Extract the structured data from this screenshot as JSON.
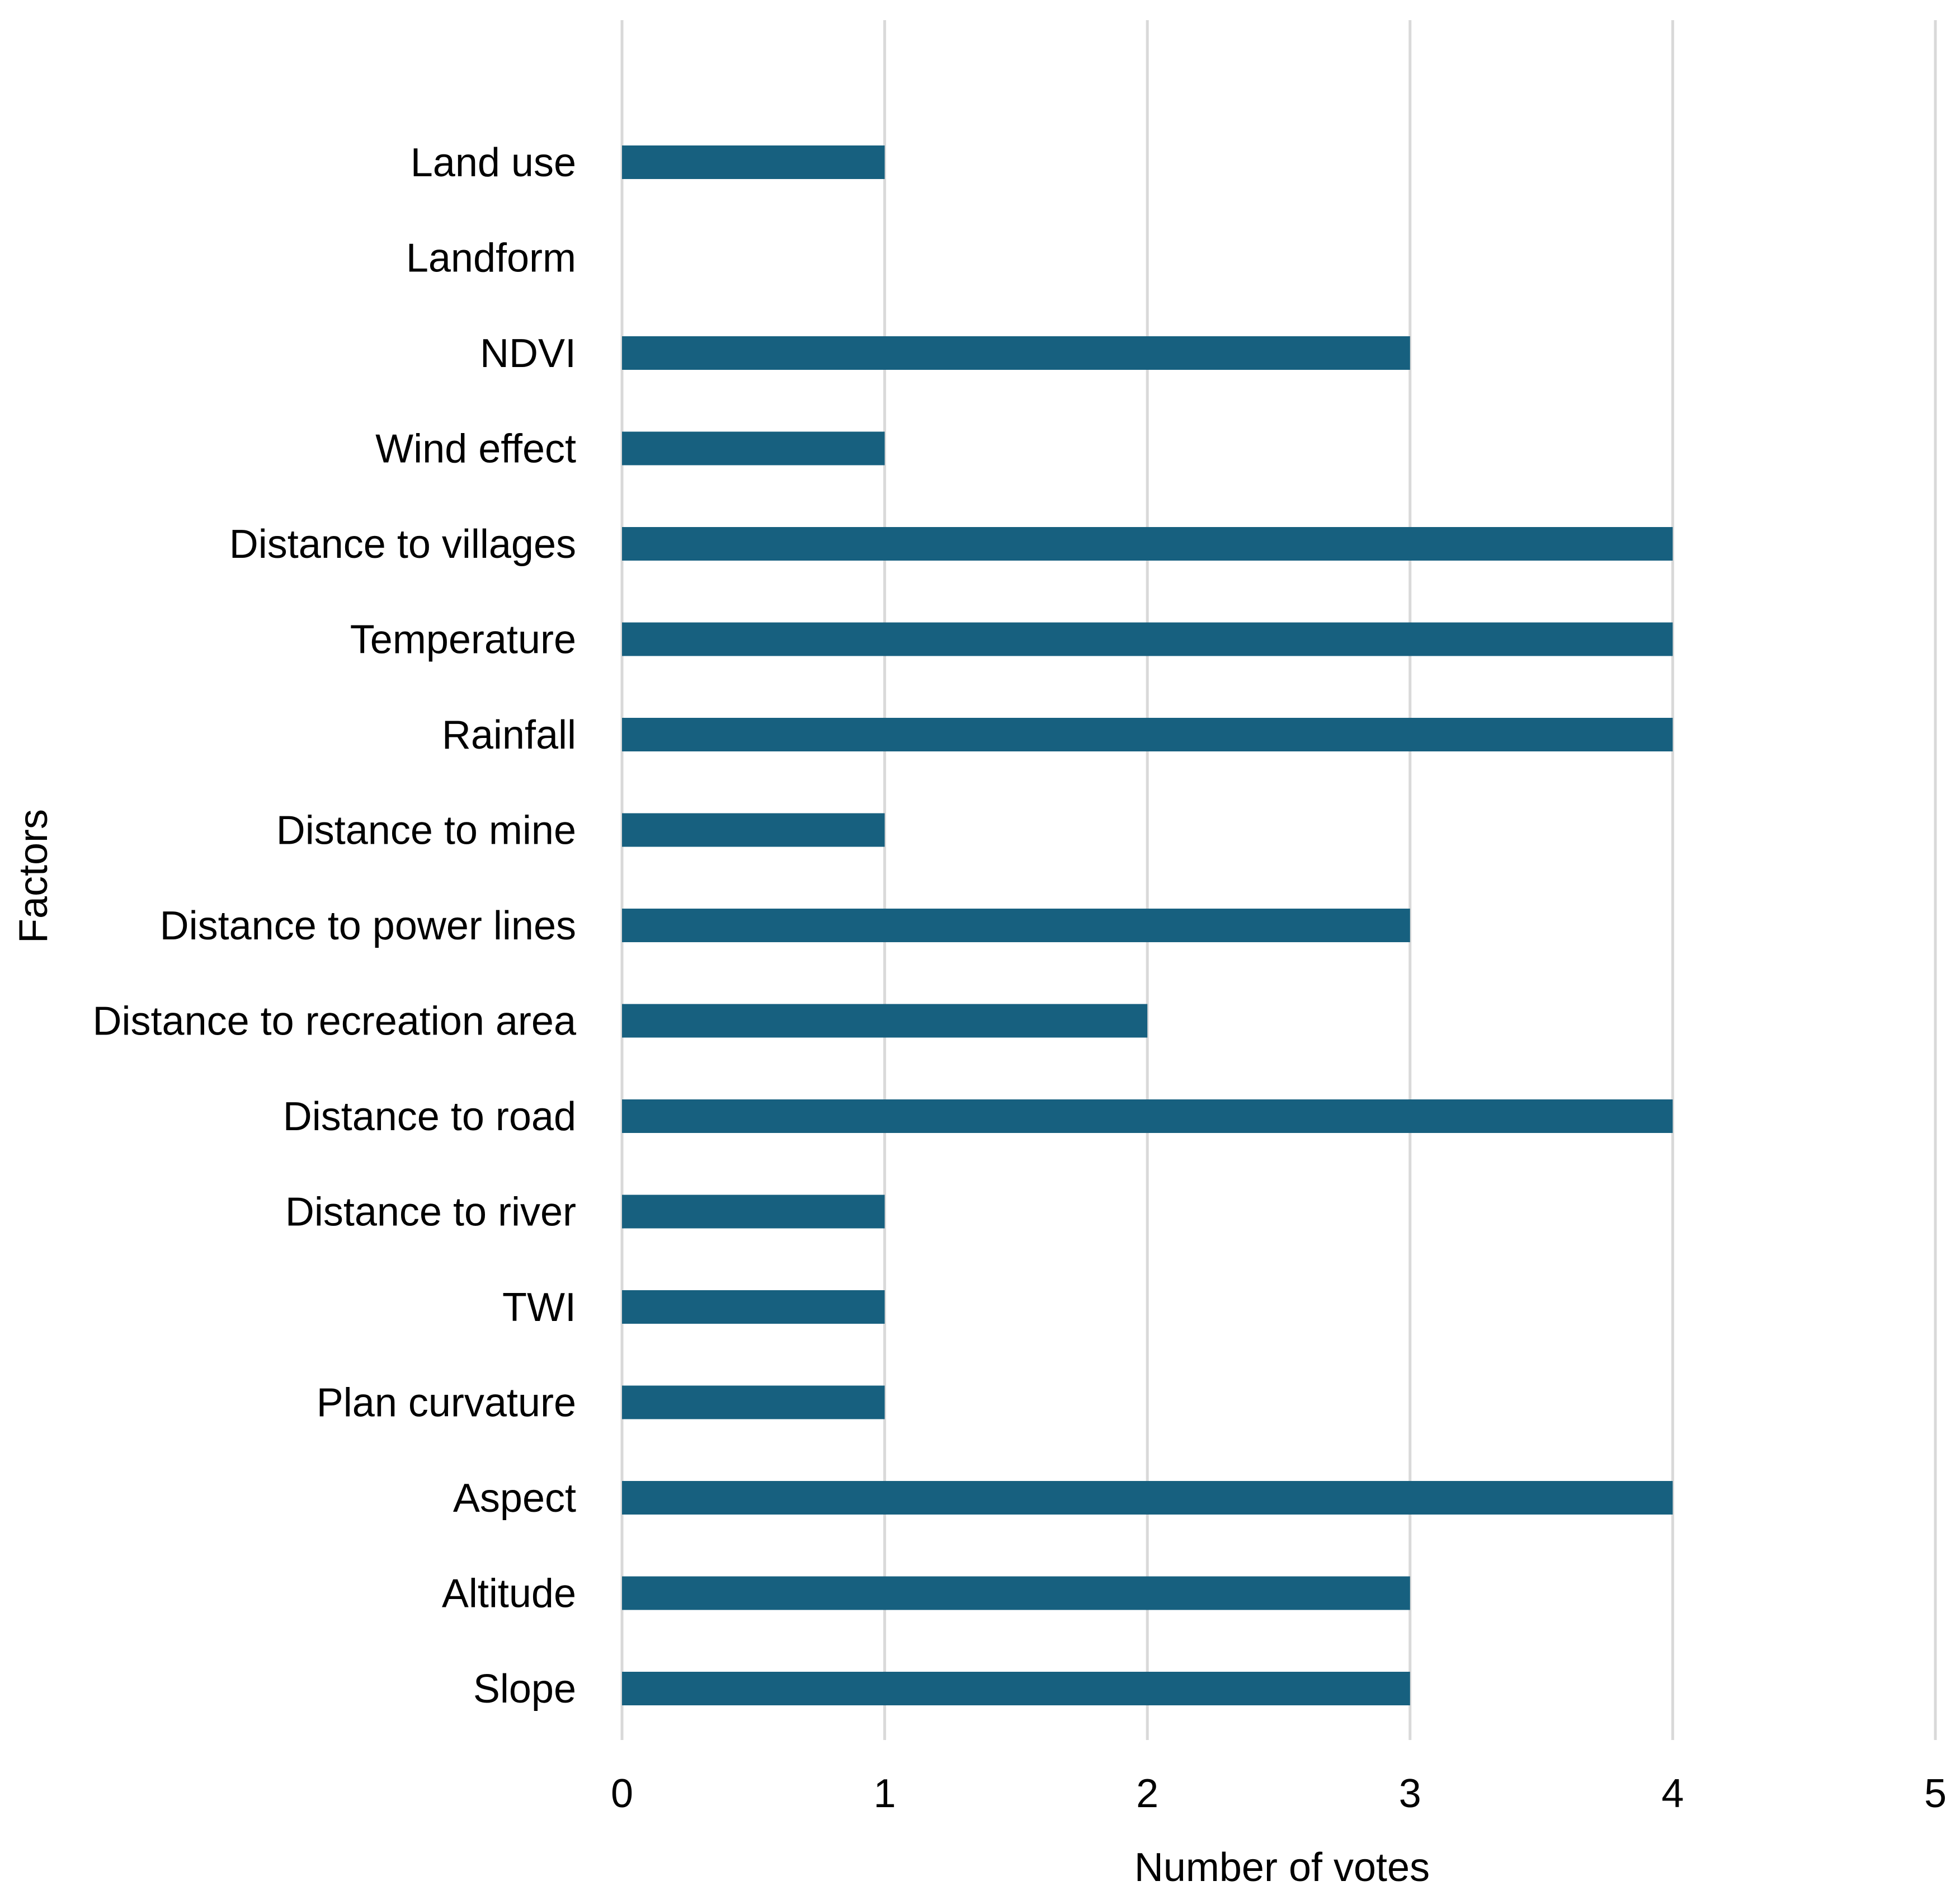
{
  "chart_data": {
    "type": "bar",
    "orientation": "horizontal",
    "title": "",
    "xlabel": "Number of votes",
    "ylabel": "Factors",
    "xlim": [
      0,
      5
    ],
    "xticks": [
      "0",
      "1",
      "2",
      "3",
      "4",
      "5"
    ],
    "grid": "vertical",
    "legend": "none",
    "categories": [
      "Land use",
      "Landform",
      "NDVI",
      "Wind effect",
      "Distance to villages",
      "Temperature",
      "Rainfall",
      "Distance to mine",
      "Distance to power lines",
      "Distance to recreation area",
      "Distance to road",
      "Distance to river",
      "TWI",
      "Plan curvature",
      "Aspect",
      "Altitude",
      "Slope"
    ],
    "series": [
      {
        "name": "Number of votes",
        "values": [
          1,
          0,
          3,
          1,
          4,
          4,
          4,
          1,
          3,
          2,
          4,
          1,
          1,
          1,
          4,
          3,
          3
        ]
      }
    ],
    "colors": {
      "bar": "#17607f",
      "grid": "#d9d9d9"
    }
  }
}
